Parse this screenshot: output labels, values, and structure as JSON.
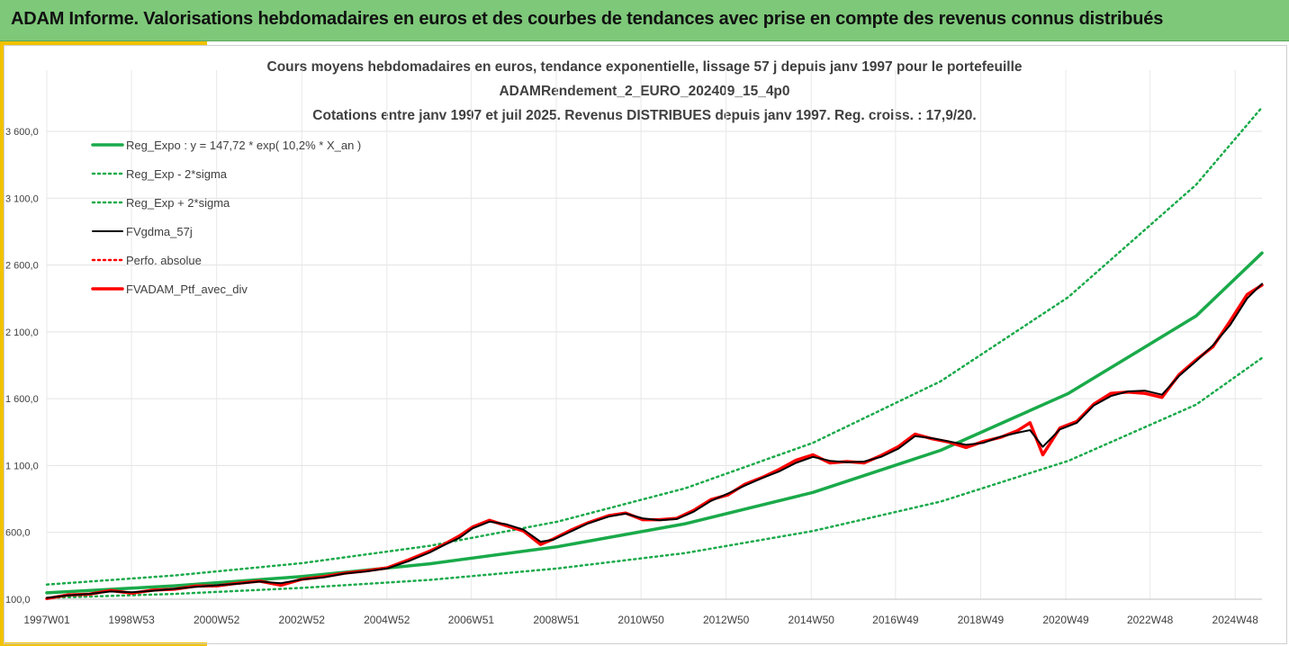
{
  "banner": {
    "title": "ADAM Informe. Valorisations hebdomadaires en euros et des courbes de tendances avec prise en compte des revenus connus distribués"
  },
  "colors": {
    "banner_bg": "#7ec87a",
    "accent": "#f2c200",
    "regression": "#1aaa4a",
    "smoothed": "#000000",
    "portfolio": "#ff0000"
  },
  "chart_data": {
    "type": "line",
    "title_lines": [
      "Cours moyens hebdomadaires  en euros, tendance exponentielle, lissage 57 j depuis janv 1997 pour le portefeuille",
      "ADAMRendement_2_EURO_202409_15_4p0",
      "Cotations  entre janv 1997 et juil 2025. Revenus DISTRIBUES depuis janv 1997. Reg. croiss. : 17,9/20."
    ],
    "xlabel": "",
    "ylabel": "",
    "x_range": [
      1997.0,
      2025.55
    ],
    "ylim": [
      100,
      3800
    ],
    "y_ticks": [
      100,
      600,
      1100,
      1600,
      2100,
      2600,
      3100,
      3600
    ],
    "y_tick_labels": [
      "100,0",
      "600,0",
      "1 100,0",
      "1 600,0",
      "2 100,0",
      "2 600,0",
      "3 100,0",
      "3 600,0"
    ],
    "x_ticks": [
      1997.0,
      1998.99,
      2000.99,
      2002.99,
      2004.99,
      2006.97,
      2008.97,
      2010.96,
      2012.96,
      2014.96,
      2016.94,
      2018.94,
      2020.94,
      2022.92,
      2024.92
    ],
    "x_tick_labels": [
      "1997W01",
      "1998W53",
      "2000W52",
      "2002W52",
      "2004W52",
      "2006W51",
      "2008W51",
      "2010W50",
      "2012W50",
      "2014W50",
      "2016W49",
      "2018W49",
      "2020W49",
      "2022W48",
      "2024W48"
    ],
    "grid": true,
    "legend_position": "top-left",
    "series": [
      {
        "name": "Reg_Expo : y = 147,72 * exp( 10,2% *  X_an )",
        "style": "solid-thick",
        "color": "#1aaa4a",
        "x": [
          1997.0,
          2000.0,
          2003.0,
          2006.0,
          2009.0,
          2012.0,
          2015.0,
          2018.0,
          2021.0,
          2024.0,
          2025.55
        ],
        "y": [
          148,
          200,
          270,
          365,
          493,
          665,
          899,
          1214,
          1639,
          2218,
          2690
        ]
      },
      {
        "name": "Reg_Exp - 2*sigma",
        "style": "dotted",
        "color": "#1aaa4a",
        "x": [
          1997.0,
          2000.0,
          2003.0,
          2006.0,
          2009.0,
          2012.0,
          2015.0,
          2018.0,
          2021.0,
          2024.0,
          2025.55
        ],
        "y": [
          110,
          140,
          185,
          245,
          330,
          445,
          610,
          830,
          1135,
          1555,
          1905
        ]
      },
      {
        "name": "Reg_Exp + 2*sigma",
        "style": "dotted",
        "color": "#1aaa4a",
        "x": [
          1997.0,
          2000.0,
          2003.0,
          2006.0,
          2009.0,
          2012.0,
          2015.0,
          2018.0,
          2021.0,
          2024.0,
          2025.55
        ],
        "y": [
          210,
          278,
          370,
          500,
          680,
          930,
          1270,
          1730,
          2360,
          3200,
          3780
        ]
      },
      {
        "name": "FVgdma_57j",
        "style": "solid",
        "color": "#000000",
        "x": [
          1997.0,
          1997.5,
          1998.0,
          1998.5,
          1999.0,
          1999.5,
          2000.0,
          2000.5,
          2001.0,
          2001.5,
          2002.0,
          2002.5,
          2003.0,
          2003.5,
          2004.0,
          2004.5,
          2005.0,
          2005.5,
          2006.0,
          2006.3,
          2006.7,
          2007.0,
          2007.4,
          2007.8,
          2008.2,
          2008.6,
          2008.9,
          2009.3,
          2009.7,
          2010.2,
          2010.6,
          2011.0,
          2011.4,
          2011.8,
          2012.2,
          2012.6,
          2013.0,
          2013.4,
          2013.8,
          2014.2,
          2014.6,
          2015.0,
          2015.4,
          2015.8,
          2016.2,
          2016.6,
          2017.0,
          2017.4,
          2017.8,
          2018.2,
          2018.6,
          2019.0,
          2019.4,
          2019.8,
          2020.1,
          2020.4,
          2020.8,
          2021.2,
          2021.6,
          2022.0,
          2022.4,
          2022.8,
          2023.2,
          2023.6,
          2024.0,
          2024.4,
          2024.8,
          2025.2,
          2025.55
        ],
        "y": [
          110,
          128,
          140,
          158,
          152,
          163,
          178,
          192,
          204,
          216,
          232,
          220,
          248,
          263,
          292,
          308,
          330,
          385,
          450,
          500,
          560,
          630,
          680,
          660,
          620,
          530,
          545,
          605,
          665,
          718,
          740,
          705,
          690,
          700,
          755,
          835,
          890,
          950,
          1005,
          1055,
          1120,
          1165,
          1135,
          1125,
          1130,
          1165,
          1225,
          1320,
          1305,
          1280,
          1255,
          1270,
          1315,
          1345,
          1365,
          1240,
          1370,
          1420,
          1550,
          1620,
          1655,
          1660,
          1630,
          1770,
          1880,
          2000,
          2150,
          2350,
          2460
        ]
      },
      {
        "name": "Perfo. absolue",
        "style": "dotted",
        "color": "#ff0000",
        "x": [],
        "y": []
      },
      {
        "name": "FVADAM_Ptf_avec_div",
        "style": "solid-thick",
        "color": "#ff0000",
        "x": [
          1997.0,
          1997.5,
          1998.0,
          1998.5,
          1999.0,
          1999.5,
          2000.0,
          2000.5,
          2001.0,
          2001.5,
          2002.0,
          2002.5,
          2003.0,
          2003.5,
          2004.0,
          2004.5,
          2005.0,
          2005.5,
          2006.0,
          2006.3,
          2006.7,
          2007.0,
          2007.4,
          2007.8,
          2008.2,
          2008.6,
          2008.9,
          2009.3,
          2009.7,
          2010.2,
          2010.6,
          2011.0,
          2011.4,
          2011.8,
          2012.2,
          2012.6,
          2013.0,
          2013.4,
          2013.8,
          2014.2,
          2014.6,
          2015.0,
          2015.4,
          2015.8,
          2016.2,
          2016.6,
          2017.0,
          2017.4,
          2017.8,
          2018.2,
          2018.6,
          2019.0,
          2019.4,
          2019.8,
          2020.1,
          2020.4,
          2020.8,
          2021.2,
          2021.6,
          2022.0,
          2022.4,
          2022.8,
          2023.2,
          2023.6,
          2024.0,
          2024.4,
          2024.8,
          2025.2,
          2025.55
        ],
        "y": [
          105,
          132,
          138,
          165,
          145,
          168,
          175,
          198,
          200,
          220,
          235,
          205,
          250,
          268,
          295,
          312,
          335,
          395,
          460,
          505,
          575,
          640,
          690,
          650,
          610,
          510,
          550,
          615,
          670,
          725,
          745,
          695,
          695,
          705,
          765,
          845,
          880,
          960,
          1010,
          1070,
          1140,
          1180,
          1120,
          1130,
          1120,
          1175,
          1240,
          1335,
          1300,
          1275,
          1235,
          1280,
          1310,
          1360,
          1420,
          1180,
          1380,
          1430,
          1560,
          1640,
          1650,
          1640,
          1610,
          1780,
          1890,
          1990,
          2180,
          2380,
          2450
        ]
      }
    ]
  }
}
